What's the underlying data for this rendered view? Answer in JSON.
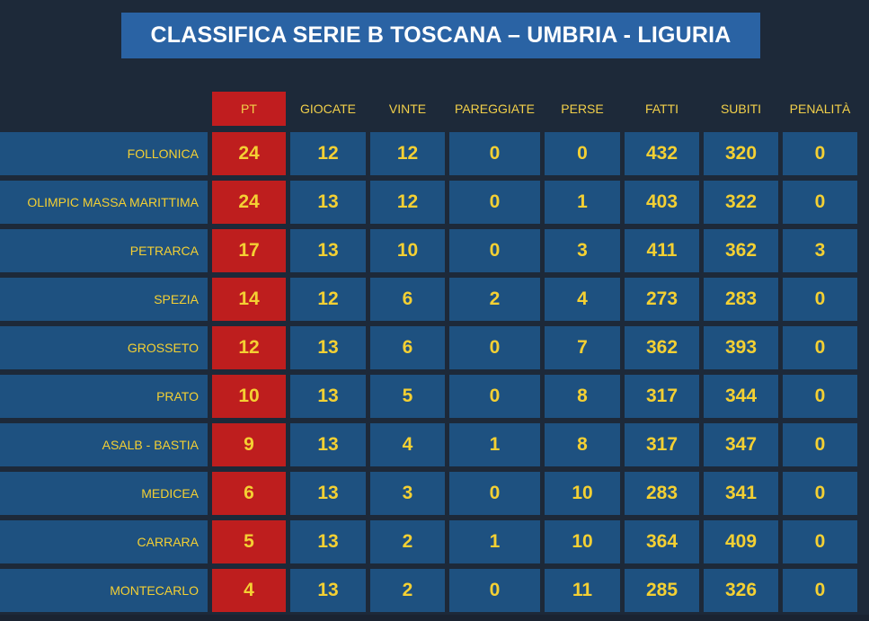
{
  "title": "CLASSIFICA SERIE B TOSCANA – UMBRIA - LIGURIA",
  "headers": [
    "PT",
    "GIOCATE",
    "VINTE",
    "PAREGGIATE",
    "PERSE",
    "FATTI",
    "SUBITI",
    "PENALITÀ"
  ],
  "colors": {
    "background": "#1d2939",
    "title_bg": "#2a63a4",
    "cell_bg": "#1e5180",
    "points_bg": "#be1e1e",
    "text_yellow": "#f4d033"
  },
  "rows": [
    {
      "team": "FOLLONICA",
      "pt": "24",
      "giocate": "12",
      "vinte": "12",
      "pareggiate": "0",
      "perse": "0",
      "fatti": "432",
      "subiti": "320",
      "penalita": "0"
    },
    {
      "team": "OLIMPIC MASSA MARITTIMA",
      "pt": "24",
      "giocate": "13",
      "vinte": "12",
      "pareggiate": "0",
      "perse": "1",
      "fatti": "403",
      "subiti": "322",
      "penalita": "0"
    },
    {
      "team": "PETRARCA",
      "pt": "17",
      "giocate": "13",
      "vinte": "10",
      "pareggiate": "0",
      "perse": "3",
      "fatti": "411",
      "subiti": "362",
      "penalita": "3"
    },
    {
      "team": "SPEZIA",
      "pt": "14",
      "giocate": "12",
      "vinte": "6",
      "pareggiate": "2",
      "perse": "4",
      "fatti": "273",
      "subiti": "283",
      "penalita": "0"
    },
    {
      "team": "GROSSETO",
      "pt": "12",
      "giocate": "13",
      "vinte": "6",
      "pareggiate": "0",
      "perse": "7",
      "fatti": "362",
      "subiti": "393",
      "penalita": "0"
    },
    {
      "team": "PRATO",
      "pt": "10",
      "giocate": "13",
      "vinte": "5",
      "pareggiate": "0",
      "perse": "8",
      "fatti": "317",
      "subiti": "344",
      "penalita": "0"
    },
    {
      "team": "ASALB - BASTIA",
      "pt": "9",
      "giocate": "13",
      "vinte": "4",
      "pareggiate": "1",
      "perse": "8",
      "fatti": "317",
      "subiti": "347",
      "penalita": "0"
    },
    {
      "team": "MEDICEA",
      "pt": "6",
      "giocate": "13",
      "vinte": "3",
      "pareggiate": "0",
      "perse": "10",
      "fatti": "283",
      "subiti": "341",
      "penalita": "0"
    },
    {
      "team": "CARRARA",
      "pt": "5",
      "giocate": "13",
      "vinte": "2",
      "pareggiate": "1",
      "perse": "10",
      "fatti": "364",
      "subiti": "409",
      "penalita": "0"
    },
    {
      "team": "MONTECARLO",
      "pt": "4",
      "giocate": "13",
      "vinte": "2",
      "pareggiate": "0",
      "perse": "11",
      "fatti": "285",
      "subiti": "326",
      "penalita": "0"
    }
  ]
}
